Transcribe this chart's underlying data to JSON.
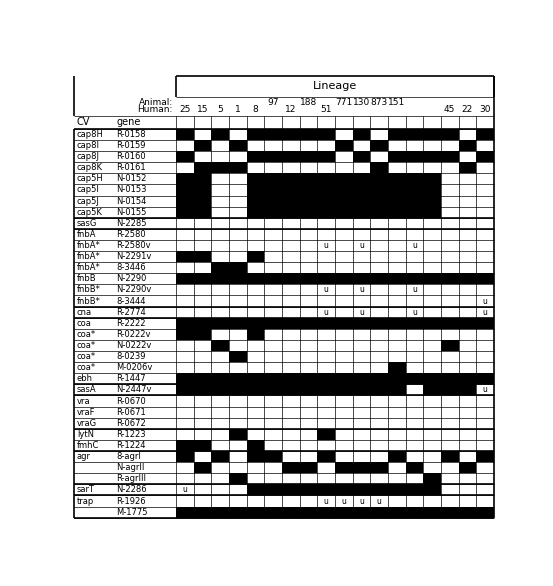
{
  "lineage_human": [
    "25",
    "15",
    "5",
    "1",
    "8",
    "",
    "12",
    "",
    "51",
    "",
    "",
    "",
    "",
    "",
    "",
    "45",
    "22",
    "30"
  ],
  "lineage_animal": [
    "",
    "",
    "",
    "",
    "",
    "97",
    "",
    "188",
    "",
    "771",
    "130",
    "873",
    "151",
    "",
    "",
    "",
    "",
    ""
  ],
  "n_cols": 18,
  "rows": [
    {
      "cv": "cap8H",
      "gene": "R-0158",
      "group_sep_before": false,
      "values": [
        1,
        0,
        1,
        0,
        1,
        1,
        1,
        1,
        1,
        0,
        1,
        0,
        1,
        1,
        1,
        1,
        0,
        1
      ],
      "u_cols": []
    },
    {
      "cv": "cap8I",
      "gene": "R-0159",
      "group_sep_before": false,
      "values": [
        0,
        1,
        0,
        1,
        0,
        0,
        0,
        0,
        0,
        1,
        0,
        1,
        0,
        0,
        0,
        0,
        1,
        0
      ],
      "u_cols": []
    },
    {
      "cv": "cap8J",
      "gene": "R-0160",
      "group_sep_before": false,
      "values": [
        1,
        0,
        0,
        0,
        1,
        1,
        1,
        1,
        1,
        0,
        1,
        0,
        1,
        1,
        1,
        1,
        0,
        1
      ],
      "u_cols": []
    },
    {
      "cv": "cap8K",
      "gene": "R-0161",
      "group_sep_before": false,
      "values": [
        0,
        1,
        1,
        1,
        0,
        0,
        0,
        0,
        0,
        0,
        0,
        1,
        0,
        0,
        0,
        0,
        1,
        0
      ],
      "u_cols": []
    },
    {
      "cv": "cap5H",
      "gene": "N-0152",
      "group_sep_before": false,
      "values": [
        1,
        1,
        0,
        0,
        1,
        1,
        1,
        1,
        1,
        1,
        1,
        1,
        1,
        1,
        1,
        0,
        0,
        0
      ],
      "u_cols": []
    },
    {
      "cv": "cap5I",
      "gene": "N-0153",
      "group_sep_before": false,
      "values": [
        1,
        1,
        0,
        0,
        1,
        1,
        1,
        1,
        1,
        1,
        1,
        1,
        1,
        1,
        1,
        0,
        0,
        0
      ],
      "u_cols": []
    },
    {
      "cv": "cap5J",
      "gene": "N-0154",
      "group_sep_before": false,
      "values": [
        1,
        1,
        0,
        0,
        1,
        1,
        1,
        1,
        1,
        1,
        1,
        1,
        1,
        1,
        1,
        0,
        0,
        0
      ],
      "u_cols": []
    },
    {
      "cv": "cap5K",
      "gene": "N-0155",
      "group_sep_before": false,
      "values": [
        1,
        1,
        0,
        0,
        1,
        1,
        1,
        1,
        1,
        1,
        1,
        1,
        1,
        1,
        1,
        0,
        0,
        0
      ],
      "u_cols": []
    },
    {
      "cv": "sasG",
      "gene": "N-2285",
      "group_sep_before": true,
      "values": [
        0,
        0,
        0,
        0,
        0,
        0,
        0,
        0,
        0,
        0,
        0,
        0,
        0,
        0,
        0,
        0,
        0,
        0
      ],
      "u_cols": []
    },
    {
      "cv": "fnbA",
      "gene": "R-2580",
      "group_sep_before": true,
      "values": [
        0,
        0,
        0,
        0,
        0,
        0,
        0,
        0,
        0,
        0,
        0,
        0,
        0,
        0,
        0,
        0,
        0,
        0
      ],
      "u_cols": []
    },
    {
      "cv": "fnbA*",
      "gene": "R-2580v",
      "group_sep_before": false,
      "values": [
        0,
        0,
        0,
        0,
        0,
        0,
        0,
        0,
        0,
        0,
        0,
        0,
        0,
        0,
        0,
        0,
        0,
        0
      ],
      "u_cols": [
        8,
        10,
        13
      ]
    },
    {
      "cv": "fnbA*",
      "gene": "N-2291v",
      "group_sep_before": false,
      "values": [
        1,
        1,
        0,
        0,
        1,
        0,
        0,
        0,
        0,
        0,
        0,
        0,
        0,
        0,
        0,
        0,
        0,
        0
      ],
      "u_cols": []
    },
    {
      "cv": "fnbA*",
      "gene": "8-3446",
      "group_sep_before": false,
      "values": [
        0,
        0,
        1,
        1,
        0,
        0,
        0,
        0,
        0,
        0,
        0,
        0,
        0,
        0,
        0,
        0,
        0,
        0
      ],
      "u_cols": []
    },
    {
      "cv": "fnbB",
      "gene": "N-2290",
      "group_sep_before": false,
      "values": [
        1,
        1,
        1,
        1,
        1,
        1,
        1,
        1,
        1,
        1,
        1,
        1,
        1,
        1,
        1,
        1,
        1,
        1
      ],
      "u_cols": []
    },
    {
      "cv": "fnbB*",
      "gene": "N-2290v",
      "group_sep_before": false,
      "values": [
        0,
        0,
        0,
        0,
        0,
        0,
        0,
        0,
        0,
        0,
        0,
        0,
        0,
        0,
        0,
        0,
        0,
        0
      ],
      "u_cols": [
        8,
        10,
        13
      ]
    },
    {
      "cv": "fnbB*",
      "gene": "8-3444",
      "group_sep_before": false,
      "values": [
        0,
        0,
        0,
        0,
        0,
        0,
        0,
        0,
        0,
        0,
        0,
        0,
        0,
        0,
        0,
        0,
        0,
        0
      ],
      "u_cols": [
        17
      ]
    },
    {
      "cv": "cna",
      "gene": "R-2774",
      "group_sep_before": true,
      "values": [
        0,
        0,
        0,
        0,
        0,
        0,
        0,
        0,
        0,
        0,
        0,
        0,
        0,
        0,
        0,
        0,
        0,
        0
      ],
      "u_cols": [
        8,
        10,
        13,
        17
      ]
    },
    {
      "cv": "coa",
      "gene": "R-2222",
      "group_sep_before": true,
      "values": [
        1,
        1,
        1,
        1,
        1,
        1,
        1,
        1,
        1,
        1,
        1,
        1,
        1,
        1,
        1,
        1,
        1,
        1
      ],
      "u_cols": []
    },
    {
      "cv": "coa*",
      "gene": "R-0222v",
      "group_sep_before": false,
      "values": [
        1,
        1,
        0,
        0,
        1,
        0,
        0,
        0,
        0,
        0,
        0,
        0,
        0,
        0,
        0,
        0,
        0,
        0
      ],
      "u_cols": []
    },
    {
      "cv": "coa*",
      "gene": "N-0222v",
      "group_sep_before": false,
      "values": [
        0,
        0,
        1,
        0,
        0,
        0,
        0,
        0,
        0,
        0,
        0,
        0,
        0,
        0,
        0,
        1,
        0,
        0
      ],
      "u_cols": []
    },
    {
      "cv": "coa*",
      "gene": "8-0239",
      "group_sep_before": false,
      "values": [
        0,
        0,
        0,
        1,
        0,
        0,
        0,
        0,
        0,
        0,
        0,
        0,
        0,
        0,
        0,
        0,
        0,
        0
      ],
      "u_cols": []
    },
    {
      "cv": "coa*",
      "gene": "M-0206v",
      "group_sep_before": false,
      "values": [
        0,
        0,
        0,
        0,
        0,
        0,
        0,
        0,
        0,
        0,
        0,
        0,
        1,
        0,
        0,
        0,
        0,
        0
      ],
      "u_cols": []
    },
    {
      "cv": "ebh",
      "gene": "R-1447",
      "group_sep_before": false,
      "values": [
        1,
        1,
        1,
        1,
        1,
        1,
        1,
        1,
        1,
        1,
        1,
        1,
        1,
        1,
        1,
        1,
        1,
        1
      ],
      "u_cols": []
    },
    {
      "cv": "sasA",
      "gene": "N-2447v",
      "group_sep_before": true,
      "values": [
        1,
        1,
        1,
        1,
        1,
        1,
        1,
        1,
        1,
        1,
        1,
        1,
        1,
        0,
        1,
        1,
        1,
        0
      ],
      "u_cols": [
        17
      ]
    },
    {
      "cv": "vra",
      "gene": "R-0670",
      "group_sep_before": true,
      "values": [
        0,
        0,
        0,
        0,
        0,
        0,
        0,
        0,
        0,
        0,
        0,
        0,
        0,
        0,
        0,
        0,
        0,
        0
      ],
      "u_cols": []
    },
    {
      "cv": "vraF",
      "gene": "R-0671",
      "group_sep_before": false,
      "values": [
        0,
        0,
        0,
        0,
        0,
        0,
        0,
        0,
        0,
        0,
        0,
        0,
        0,
        0,
        0,
        0,
        0,
        0
      ],
      "u_cols": []
    },
    {
      "cv": "vraG",
      "gene": "R-0672",
      "group_sep_before": false,
      "values": [
        0,
        0,
        0,
        0,
        0,
        0,
        0,
        0,
        0,
        0,
        0,
        0,
        0,
        0,
        0,
        0,
        0,
        0
      ],
      "u_cols": []
    },
    {
      "cv": "lytN",
      "gene": "R-1223",
      "group_sep_before": true,
      "values": [
        0,
        0,
        0,
        1,
        0,
        0,
        0,
        0,
        1,
        0,
        0,
        0,
        0,
        0,
        0,
        0,
        0,
        0
      ],
      "u_cols": []
    },
    {
      "cv": "fmhC",
      "gene": "R-1224",
      "group_sep_before": false,
      "values": [
        1,
        1,
        0,
        0,
        1,
        0,
        0,
        0,
        0,
        0,
        0,
        0,
        0,
        0,
        0,
        0,
        0,
        0
      ],
      "u_cols": []
    },
    {
      "cv": "agr",
      "gene": "8-agrI",
      "group_sep_before": true,
      "values": [
        1,
        0,
        1,
        0,
        1,
        1,
        0,
        0,
        1,
        0,
        0,
        0,
        1,
        0,
        0,
        1,
        0,
        1
      ],
      "u_cols": []
    },
    {
      "cv": "",
      "gene": "N-agrII",
      "group_sep_before": false,
      "values": [
        0,
        1,
        0,
        0,
        0,
        0,
        1,
        1,
        0,
        1,
        1,
        1,
        0,
        1,
        0,
        0,
        1,
        0
      ],
      "u_cols": []
    },
    {
      "cv": "",
      "gene": "R-agrIII",
      "group_sep_before": false,
      "values": [
        0,
        0,
        0,
        1,
        0,
        0,
        0,
        0,
        0,
        0,
        0,
        0,
        0,
        0,
        1,
        0,
        0,
        0
      ],
      "u_cols": []
    },
    {
      "cv": "sarT",
      "gene": "N-2286",
      "group_sep_before": true,
      "values": [
        0,
        0,
        0,
        0,
        1,
        1,
        1,
        1,
        1,
        1,
        1,
        1,
        1,
        1,
        1,
        0,
        0,
        0
      ],
      "u_cols": [
        0
      ]
    },
    {
      "cv": "trap",
      "gene": "R-1926",
      "group_sep_before": true,
      "values": [
        0,
        0,
        0,
        0,
        0,
        0,
        0,
        0,
        0,
        0,
        0,
        0,
        0,
        0,
        0,
        0,
        0,
        0
      ],
      "u_cols": [
        8,
        9,
        10,
        11
      ]
    },
    {
      "cv": "",
      "gene": "M-1775",
      "group_sep_before": false,
      "values": [
        1,
        1,
        1,
        1,
        1,
        1,
        1,
        1,
        1,
        1,
        1,
        1,
        1,
        1,
        1,
        1,
        1,
        1
      ],
      "u_cols": []
    }
  ]
}
